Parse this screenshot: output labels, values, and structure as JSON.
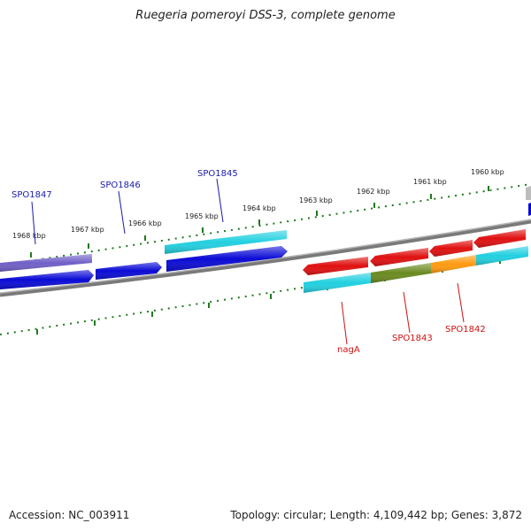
{
  "title": "Ruegeria pomeroyi DSS-3, complete genome",
  "footer": {
    "accession_label": "Accession:",
    "accession": "NC_003911",
    "topology_label": "Topology:",
    "topology": "circular",
    "length_label": "Length:",
    "length": "4,109,442 bp",
    "genes_label": "Genes:",
    "genes": "3,872"
  },
  "colors": {
    "background": "#ffffff",
    "backbone": "#808080",
    "tick": "#1e7a1e",
    "blue_gene": "#0a0ad6",
    "cyan_gene": "#22d0e0",
    "purple_gene": "#7060c8",
    "red_gene": "#e01010",
    "olive_gene": "#6a8a20",
    "orange_gene": "#ff9a10",
    "forward_label": "#1a1ab0",
    "reverse_label": "#d01010"
  },
  "ruler": {
    "labels": [
      "1968 kbp",
      "1967 kbp",
      "1966 kbp",
      "1965 kbp",
      "1964 kbp",
      "1963 kbp",
      "1962 kbp",
      "1961 kbp",
      "1960 kbp"
    ]
  },
  "labels": {
    "forward": [
      "SPO1847",
      "SPO1846",
      "SPO1845"
    ],
    "reverse": [
      "nagA",
      "SPO1843",
      "SPO1842"
    ]
  }
}
